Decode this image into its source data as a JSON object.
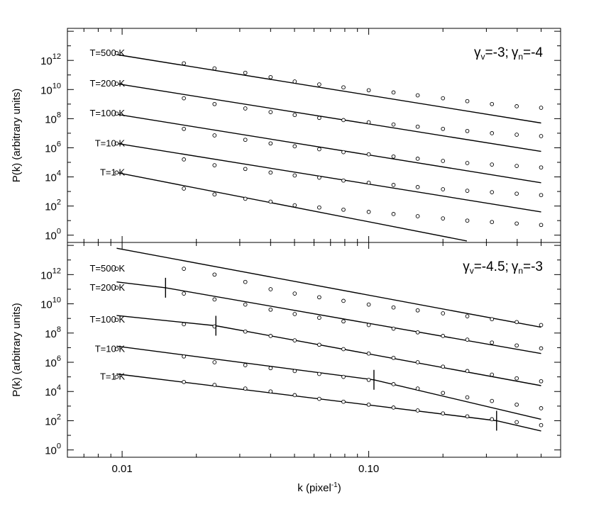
{
  "chart_data": {
    "type": "scatter",
    "xlabel": "k (pixel",
    "xlabel_superscript": "-1",
    "xlabel_close": ")",
    "x_scale": "log",
    "xlim": [
      0.006,
      0.6
    ],
    "x_ticks": [
      {
        "value": 0.01,
        "label": "0.01"
      },
      {
        "value": 0.1,
        "label": "0.10"
      }
    ],
    "shared_x_axis": true,
    "panels": [
      {
        "id": "top",
        "ylabel": "P(k) (arbitrary units)",
        "y_scale": "log",
        "ylim_exp": [
          -0.5,
          14.2
        ],
        "y_ticks": [
          {
            "exp": 0,
            "base": "10",
            "sup": "0"
          },
          {
            "exp": 2,
            "base": "10",
            "sup": "2"
          },
          {
            "exp": 4,
            "base": "10",
            "sup": "4"
          },
          {
            "exp": 6,
            "base": "10",
            "sup": "6"
          },
          {
            "exp": 8,
            "base": "10",
            "sup": "8"
          },
          {
            "exp": 10,
            "base": "10",
            "sup": "10"
          },
          {
            "exp": 12,
            "base": "10",
            "sup": "12"
          }
        ],
        "annotation": {
          "gv_symbol": "γ",
          "gv_sub": "v",
          "gv_value": "=-3;",
          "gn_symbol": "γ",
          "gn_sub": "n",
          "gn_value": "=-4"
        },
        "series": [
          {
            "name": "T=500 K",
            "line": {
              "x": [
                0.0095,
                0.5
              ],
              "log_y": [
                12.4,
                7.7
              ]
            },
            "points": {
              "x": [
                0.0095,
                0.0178,
                0.0237,
                0.0316,
                0.04,
                0.0501,
                0.063,
                0.079,
                0.1,
                0.126,
                0.158,
                0.2,
                0.251,
                0.316,
                0.398,
                0.5
              ],
              "log_y": [
                12.5,
                11.8,
                11.45,
                11.15,
                10.85,
                10.55,
                10.35,
                10.15,
                9.95,
                9.8,
                9.6,
                9.4,
                9.2,
                9.0,
                8.85,
                8.75
              ]
            }
          },
          {
            "name": "T=200 K",
            "line": {
              "x": [
                0.0095,
                0.5
              ],
              "log_y": [
                10.4,
                5.75
              ]
            },
            "points": {
              "x": [
                0.0095,
                0.0178,
                0.0237,
                0.0316,
                0.04,
                0.0501,
                0.063,
                0.079,
                0.1,
                0.126,
                0.158,
                0.2,
                0.251,
                0.316,
                0.398,
                0.5
              ],
              "log_y": [
                10.4,
                9.4,
                9.0,
                8.7,
                8.45,
                8.25,
                8.05,
                7.9,
                7.75,
                7.6,
                7.45,
                7.3,
                7.15,
                7.0,
                6.9,
                6.8
              ]
            }
          },
          {
            "name": "T=100 K",
            "line": {
              "x": [
                0.0095,
                0.5
              ],
              "log_y": [
                8.3,
                3.6
              ]
            },
            "points": {
              "x": [
                0.0095,
                0.0178,
                0.0237,
                0.0316,
                0.04,
                0.0501,
                0.063,
                0.079,
                0.1,
                0.126,
                0.158,
                0.2,
                0.251,
                0.316,
                0.398,
                0.5
              ],
              "log_y": [
                8.35,
                7.3,
                6.85,
                6.55,
                6.3,
                6.1,
                5.9,
                5.7,
                5.55,
                5.4,
                5.25,
                5.1,
                4.95,
                4.85,
                4.75,
                4.65
              ]
            }
          },
          {
            "name": "T=10 K",
            "line": {
              "x": [
                0.0095,
                0.5
              ],
              "log_y": [
                6.3,
                1.6
              ]
            },
            "points": {
              "x": [
                0.0095,
                0.0178,
                0.0237,
                0.0316,
                0.04,
                0.0501,
                0.063,
                0.079,
                0.1,
                0.126,
                0.158,
                0.2,
                0.251,
                0.316,
                0.398,
                0.5
              ],
              "log_y": [
                6.3,
                5.2,
                4.8,
                4.55,
                4.3,
                4.1,
                3.95,
                3.75,
                3.6,
                3.45,
                3.3,
                3.15,
                3.05,
                2.95,
                2.85,
                2.75
              ]
            }
          },
          {
            "name": "T=1 K",
            "line": {
              "x": [
                0.0095,
                0.25
              ],
              "log_y": [
                4.3,
                -0.4
              ]
            },
            "points": {
              "x": [
                0.0095,
                0.0178,
                0.0237,
                0.0316,
                0.04,
                0.0501,
                0.063,
                0.079,
                0.1,
                0.126,
                0.158,
                0.2,
                0.251,
                0.316,
                0.398,
                0.5
              ],
              "log_y": [
                4.3,
                3.2,
                2.8,
                2.5,
                2.3,
                2.05,
                1.9,
                1.75,
                1.6,
                1.45,
                1.3,
                1.15,
                1.0,
                0.9,
                0.8,
                0.7
              ]
            }
          }
        ]
      },
      {
        "id": "bottom",
        "ylabel": "P(k) (arbitrary units)",
        "y_scale": "log",
        "ylim_exp": [
          -0.5,
          14.2
        ],
        "y_ticks": [
          {
            "exp": 0,
            "base": "10",
            "sup": "0"
          },
          {
            "exp": 2,
            "base": "10",
            "sup": "2"
          },
          {
            "exp": 4,
            "base": "10",
            "sup": "4"
          },
          {
            "exp": 6,
            "base": "10",
            "sup": "6"
          },
          {
            "exp": 8,
            "base": "10",
            "sup": "8"
          },
          {
            "exp": 10,
            "base": "10",
            "sup": "10"
          },
          {
            "exp": 12,
            "base": "10",
            "sup": "12"
          }
        ],
        "annotation": {
          "gv_symbol": "γ",
          "gv_sub": "v",
          "gv_value": "=-4.5;",
          "gn_symbol": "γ",
          "gn_sub": "n",
          "gn_value": "=-3"
        },
        "series": [
          {
            "name": "T=500 K",
            "break_k": null,
            "line": {
              "x": [
                0.0095,
                0.5
              ],
              "log_y": [
                13.8,
                8.4
              ]
            },
            "points": {
              "x": [
                0.0095,
                0.0178,
                0.0237,
                0.0316,
                0.04,
                0.0501,
                0.063,
                0.079,
                0.1,
                0.126,
                0.158,
                0.2,
                0.251,
                0.316,
                0.398,
                0.5
              ],
              "log_y": [
                12.4,
                12.4,
                12.0,
                11.5,
                11.0,
                10.7,
                10.45,
                10.2,
                9.95,
                9.75,
                9.55,
                9.35,
                9.15,
                8.95,
                8.75,
                8.55
              ]
            }
          },
          {
            "name": "T=200 K",
            "break_k": 0.015,
            "line": {
              "x": [
                0.0095,
                0.015,
                0.5
              ],
              "log_y": [
                11.5,
                11.1,
                6.6
              ]
            },
            "points": {
              "x": [
                0.0095,
                0.0178,
                0.0237,
                0.0316,
                0.04,
                0.0501,
                0.063,
                0.079,
                0.1,
                0.126,
                0.158,
                0.2,
                0.251,
                0.316,
                0.398,
                0.5
              ],
              "log_y": [
                11.1,
                10.7,
                10.3,
                9.95,
                9.6,
                9.3,
                9.05,
                8.8,
                8.55,
                8.3,
                8.05,
                7.8,
                7.55,
                7.35,
                7.15,
                6.95
              ]
            }
          },
          {
            "name": "T=100 K",
            "break_k": 0.024,
            "line": {
              "x": [
                0.0095,
                0.024,
                0.5
              ],
              "log_y": [
                9.2,
                8.5,
                4.4
              ]
            },
            "points": {
              "x": [
                0.0095,
                0.0178,
                0.0237,
                0.0316,
                0.04,
                0.0501,
                0.063,
                0.079,
                0.1,
                0.126,
                0.158,
                0.2,
                0.251,
                0.316,
                0.398,
                0.5
              ],
              "log_y": [
                8.9,
                8.6,
                8.45,
                8.1,
                7.8,
                7.5,
                7.2,
                6.9,
                6.6,
                6.3,
                6.0,
                5.7,
                5.4,
                5.15,
                4.9,
                4.7
              ]
            }
          },
          {
            "name": "T=10 K",
            "break_k": 0.105,
            "line": {
              "x": [
                0.0095,
                0.105,
                0.5
              ],
              "log_y": [
                7.1,
                4.8,
                2.1
              ]
            },
            "points": {
              "x": [
                0.0095,
                0.0178,
                0.0237,
                0.0316,
                0.04,
                0.0501,
                0.063,
                0.079,
                0.1,
                0.126,
                0.158,
                0.2,
                0.251,
                0.316,
                0.398,
                0.5
              ],
              "log_y": [
                6.9,
                6.4,
                6.0,
                5.8,
                5.6,
                5.4,
                5.2,
                5.0,
                4.8,
                4.5,
                4.2,
                3.9,
                3.6,
                3.35,
                3.1,
                2.85
              ]
            }
          },
          {
            "name": "T=1 K",
            "break_k": 0.33,
            "line": {
              "x": [
                0.0095,
                0.33,
                0.5
              ],
              "log_y": [
                5.2,
                2.0,
                1.3
              ]
            },
            "points": {
              "x": [
                0.0095,
                0.0178,
                0.0237,
                0.0316,
                0.04,
                0.0501,
                0.063,
                0.079,
                0.1,
                0.126,
                0.158,
                0.2,
                0.251,
                0.316,
                0.398,
                0.5
              ],
              "log_y": [
                5.0,
                4.65,
                4.45,
                4.2,
                4.0,
                3.75,
                3.5,
                3.3,
                3.1,
                2.9,
                2.7,
                2.5,
                2.3,
                2.1,
                1.9,
                1.7
              ]
            }
          }
        ]
      }
    ]
  }
}
